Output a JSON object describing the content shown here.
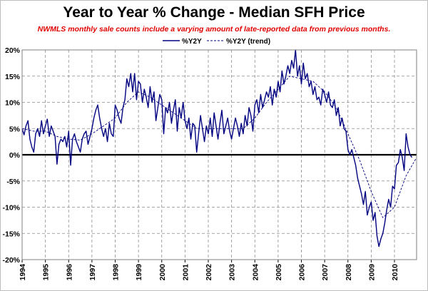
{
  "chart_data": {
    "type": "line",
    "title": "Year to Year % Change - Median SFH Price",
    "subtitle": "NWMLS monthly sale counts include a varying amount of late-reported data from previous months.",
    "xlabel": "",
    "ylabel": "",
    "xlim": [
      1994,
      2010.95
    ],
    "ylim": [
      -20,
      20
    ],
    "y_ticks": [
      "-20%",
      "-15%",
      "-10%",
      "-5%",
      "0%",
      "5%",
      "10%",
      "15%",
      "20%"
    ],
    "x_ticks": [
      "1994",
      "1995",
      "1996",
      "1997",
      "1998",
      "1999",
      "2000",
      "2001",
      "2002",
      "2003",
      "2004",
      "2005",
      "2006",
      "2007",
      "2008",
      "2009",
      "2010"
    ],
    "grid": true,
    "legend_position": "top",
    "series": [
      {
        "name": "%Y2Y",
        "color": "#000080",
        "style": "solid",
        "points": [
          [
            1994.0,
            5.0
          ],
          [
            1994.083,
            3.8
          ],
          [
            1994.167,
            5.5
          ],
          [
            1994.25,
            6.5
          ],
          [
            1994.333,
            3.0
          ],
          [
            1994.417,
            1.5
          ],
          [
            1994.5,
            0.5
          ],
          [
            1994.583,
            4.0
          ],
          [
            1994.667,
            5.0
          ],
          [
            1994.75,
            3.5
          ],
          [
            1994.833,
            6.5
          ],
          [
            1994.917,
            4.0
          ],
          [
            1995.0,
            5.5
          ],
          [
            1995.083,
            6.8
          ],
          [
            1995.167,
            3.5
          ],
          [
            1995.25,
            5.5
          ],
          [
            1995.333,
            4.5
          ],
          [
            1995.417,
            3.5
          ],
          [
            1995.5,
            -1.8
          ],
          [
            1995.583,
            2.0
          ],
          [
            1995.667,
            3.0
          ],
          [
            1995.75,
            2.5
          ],
          [
            1995.833,
            3.5
          ],
          [
            1995.917,
            1.5
          ],
          [
            1996.0,
            4.5
          ],
          [
            1996.083,
            -2.0
          ],
          [
            1996.167,
            3.0
          ],
          [
            1996.25,
            4.0
          ],
          [
            1996.333,
            2.5
          ],
          [
            1996.417,
            1.5
          ],
          [
            1996.5,
            0.5
          ],
          [
            1996.583,
            3.0
          ],
          [
            1996.667,
            4.0
          ],
          [
            1996.75,
            4.5
          ],
          [
            1996.833,
            2.0
          ],
          [
            1996.917,
            3.5
          ],
          [
            1997.0,
            5.0
          ],
          [
            1997.083,
            7.0
          ],
          [
            1997.167,
            8.5
          ],
          [
            1997.25,
            9.5
          ],
          [
            1997.333,
            7.0
          ],
          [
            1997.417,
            5.0
          ],
          [
            1997.5,
            3.5
          ],
          [
            1997.583,
            5.0
          ],
          [
            1997.667,
            2.5
          ],
          [
            1997.75,
            6.0
          ],
          [
            1997.833,
            4.0
          ],
          [
            1997.917,
            3.5
          ],
          [
            1998.0,
            9.5
          ],
          [
            1998.083,
            8.5
          ],
          [
            1998.167,
            7.0
          ],
          [
            1998.25,
            6.0
          ],
          [
            1998.333,
            9.0
          ],
          [
            1998.417,
            10.5
          ],
          [
            1998.5,
            14.5
          ],
          [
            1998.583,
            13.0
          ],
          [
            1998.667,
            15.5
          ],
          [
            1998.75,
            12.0
          ],
          [
            1998.833,
            15.5
          ],
          [
            1998.917,
            10.5
          ],
          [
            1999.0,
            14.0
          ],
          [
            1999.083,
            13.5
          ],
          [
            1999.167,
            10.0
          ],
          [
            1999.25,
            12.5
          ],
          [
            1999.333,
            11.0
          ],
          [
            1999.417,
            9.0
          ],
          [
            1999.5,
            13.0
          ],
          [
            1999.583,
            10.0
          ],
          [
            1999.667,
            12.0
          ],
          [
            1999.75,
            6.5
          ],
          [
            1999.833,
            9.0
          ],
          [
            1999.917,
            11.5
          ],
          [
            2000.0,
            10.5
          ],
          [
            2000.083,
            4.0
          ],
          [
            2000.167,
            9.0
          ],
          [
            2000.25,
            8.0
          ],
          [
            2000.333,
            10.0
          ],
          [
            2000.417,
            6.0
          ],
          [
            2000.5,
            8.5
          ],
          [
            2000.583,
            10.5
          ],
          [
            2000.667,
            4.5
          ],
          [
            2000.75,
            9.0
          ],
          [
            2000.833,
            7.0
          ],
          [
            2000.917,
            10.0
          ],
          [
            2001.0,
            6.5
          ],
          [
            2001.083,
            5.0
          ],
          [
            2001.167,
            7.0
          ],
          [
            2001.25,
            3.0
          ],
          [
            2001.333,
            6.0
          ],
          [
            2001.417,
            5.5
          ],
          [
            2001.5,
            0.5
          ],
          [
            2001.583,
            4.0
          ],
          [
            2001.667,
            7.5
          ],
          [
            2001.75,
            5.0
          ],
          [
            2001.833,
            2.5
          ],
          [
            2001.917,
            5.5
          ],
          [
            2002.0,
            4.0
          ],
          [
            2002.083,
            7.0
          ],
          [
            2002.167,
            3.5
          ],
          [
            2002.25,
            8.0
          ],
          [
            2002.333,
            5.5
          ],
          [
            2002.417,
            3.0
          ],
          [
            2002.5,
            6.0
          ],
          [
            2002.583,
            8.5
          ],
          [
            2002.667,
            4.0
          ],
          [
            2002.75,
            5.5
          ],
          [
            2002.833,
            7.0
          ],
          [
            2002.917,
            4.5
          ],
          [
            2003.0,
            3.0
          ],
          [
            2003.083,
            5.0
          ],
          [
            2003.167,
            7.0
          ],
          [
            2003.25,
            5.5
          ],
          [
            2003.333,
            3.5
          ],
          [
            2003.417,
            6.0
          ],
          [
            2003.5,
            4.0
          ],
          [
            2003.583,
            7.5
          ],
          [
            2003.667,
            5.5
          ],
          [
            2003.75,
            9.0
          ],
          [
            2003.833,
            7.5
          ],
          [
            2003.917,
            4.5
          ],
          [
            2004.0,
            9.5
          ],
          [
            2004.083,
            10.5
          ],
          [
            2004.167,
            8.0
          ],
          [
            2004.25,
            11.5
          ],
          [
            2004.333,
            9.0
          ],
          [
            2004.417,
            10.5
          ],
          [
            2004.5,
            12.0
          ],
          [
            2004.583,
            11.0
          ],
          [
            2004.667,
            13.0
          ],
          [
            2004.75,
            9.5
          ],
          [
            2004.833,
            12.5
          ],
          [
            2004.917,
            11.0
          ],
          [
            2005.0,
            14.0
          ],
          [
            2005.083,
            12.0
          ],
          [
            2005.167,
            16.0
          ],
          [
            2005.25,
            13.5
          ],
          [
            2005.333,
            15.0
          ],
          [
            2005.417,
            17.0
          ],
          [
            2005.5,
            15.5
          ],
          [
            2005.583,
            18.0
          ],
          [
            2005.667,
            16.5
          ],
          [
            2005.75,
            20.0
          ],
          [
            2005.833,
            15.0
          ],
          [
            2005.917,
            17.0
          ],
          [
            2006.0,
            13.5
          ],
          [
            2006.083,
            17.5
          ],
          [
            2006.167,
            14.5
          ],
          [
            2006.25,
            15.5
          ],
          [
            2006.333,
            13.0
          ],
          [
            2006.417,
            14.0
          ],
          [
            2006.5,
            11.5
          ],
          [
            2006.583,
            13.0
          ],
          [
            2006.667,
            10.5
          ],
          [
            2006.75,
            11.0
          ],
          [
            2006.833,
            9.5
          ],
          [
            2006.917,
            12.5
          ],
          [
            2007.0,
            11.5
          ],
          [
            2007.083,
            10.0
          ],
          [
            2007.167,
            12.0
          ],
          [
            2007.25,
            9.5
          ],
          [
            2007.333,
            9.0
          ],
          [
            2007.417,
            10.5
          ],
          [
            2007.5,
            7.5
          ],
          [
            2007.583,
            9.0
          ],
          [
            2007.667,
            5.5
          ],
          [
            2007.75,
            7.0
          ],
          [
            2007.833,
            5.0
          ],
          [
            2007.917,
            4.5
          ],
          [
            2008.0,
            1.0
          ],
          [
            2008.083,
            0.0
          ],
          [
            2008.167,
            1.0
          ],
          [
            2008.25,
            -0.5
          ],
          [
            2008.333,
            -2.0
          ],
          [
            2008.417,
            -4.5
          ],
          [
            2008.5,
            -6.0
          ],
          [
            2008.583,
            -7.5
          ],
          [
            2008.667,
            -9.5
          ],
          [
            2008.75,
            -7.0
          ],
          [
            2008.833,
            -11.5
          ],
          [
            2008.917,
            -10.0
          ],
          [
            2009.0,
            -9.0
          ],
          [
            2009.083,
            -12.5
          ],
          [
            2009.167,
            -11.0
          ],
          [
            2009.25,
            -15.5
          ],
          [
            2009.333,
            -17.5
          ],
          [
            2009.417,
            -16.0
          ],
          [
            2009.5,
            -15.0
          ],
          [
            2009.583,
            -13.0
          ],
          [
            2009.667,
            -10.5
          ],
          [
            2009.75,
            -8.5
          ],
          [
            2009.833,
            -10.0
          ],
          [
            2009.917,
            -6.0
          ],
          [
            2010.0,
            -6.5
          ],
          [
            2010.083,
            -2.0
          ],
          [
            2010.167,
            -1.5
          ],
          [
            2010.25,
            1.0
          ],
          [
            2010.333,
            -0.5
          ],
          [
            2010.417,
            -3.0
          ],
          [
            2010.5,
            4.0
          ],
          [
            2010.583,
            1.5
          ],
          [
            2010.667,
            0.0
          ],
          [
            2010.75,
            -0.5
          ]
        ]
      },
      {
        "name": "%Y2Y (trend)",
        "color": "#000080",
        "style": "dashed",
        "points": [
          [
            1994.0,
            5.0
          ],
          [
            1994.5,
            4.5
          ],
          [
            1995.0,
            4.5
          ],
          [
            1995.5,
            3.5
          ],
          [
            1996.0,
            3.0
          ],
          [
            1996.5,
            2.8
          ],
          [
            1997.0,
            4.0
          ],
          [
            1997.5,
            5.5
          ],
          [
            1998.0,
            7.0
          ],
          [
            1998.5,
            10.0
          ],
          [
            1999.0,
            12.0
          ],
          [
            1999.5,
            11.0
          ],
          [
            2000.0,
            9.5
          ],
          [
            2000.5,
            8.0
          ],
          [
            2001.0,
            6.5
          ],
          [
            2001.5,
            5.0
          ],
          [
            2002.0,
            5.0
          ],
          [
            2002.5,
            5.0
          ],
          [
            2003.0,
            5.0
          ],
          [
            2003.5,
            5.0
          ],
          [
            2004.0,
            7.0
          ],
          [
            2004.5,
            10.0
          ],
          [
            2005.0,
            12.5
          ],
          [
            2005.5,
            15.0
          ],
          [
            2006.0,
            14.5
          ],
          [
            2006.5,
            14.0
          ],
          [
            2007.0,
            12.0
          ],
          [
            2007.5,
            9.0
          ],
          [
            2008.0,
            4.0
          ],
          [
            2008.5,
            -1.0
          ],
          [
            2009.0,
            -7.0
          ],
          [
            2009.5,
            -12.0
          ],
          [
            2010.0,
            -10.0
          ],
          [
            2010.5,
            -4.0
          ],
          [
            2010.95,
            -0.5
          ]
        ]
      }
    ]
  }
}
